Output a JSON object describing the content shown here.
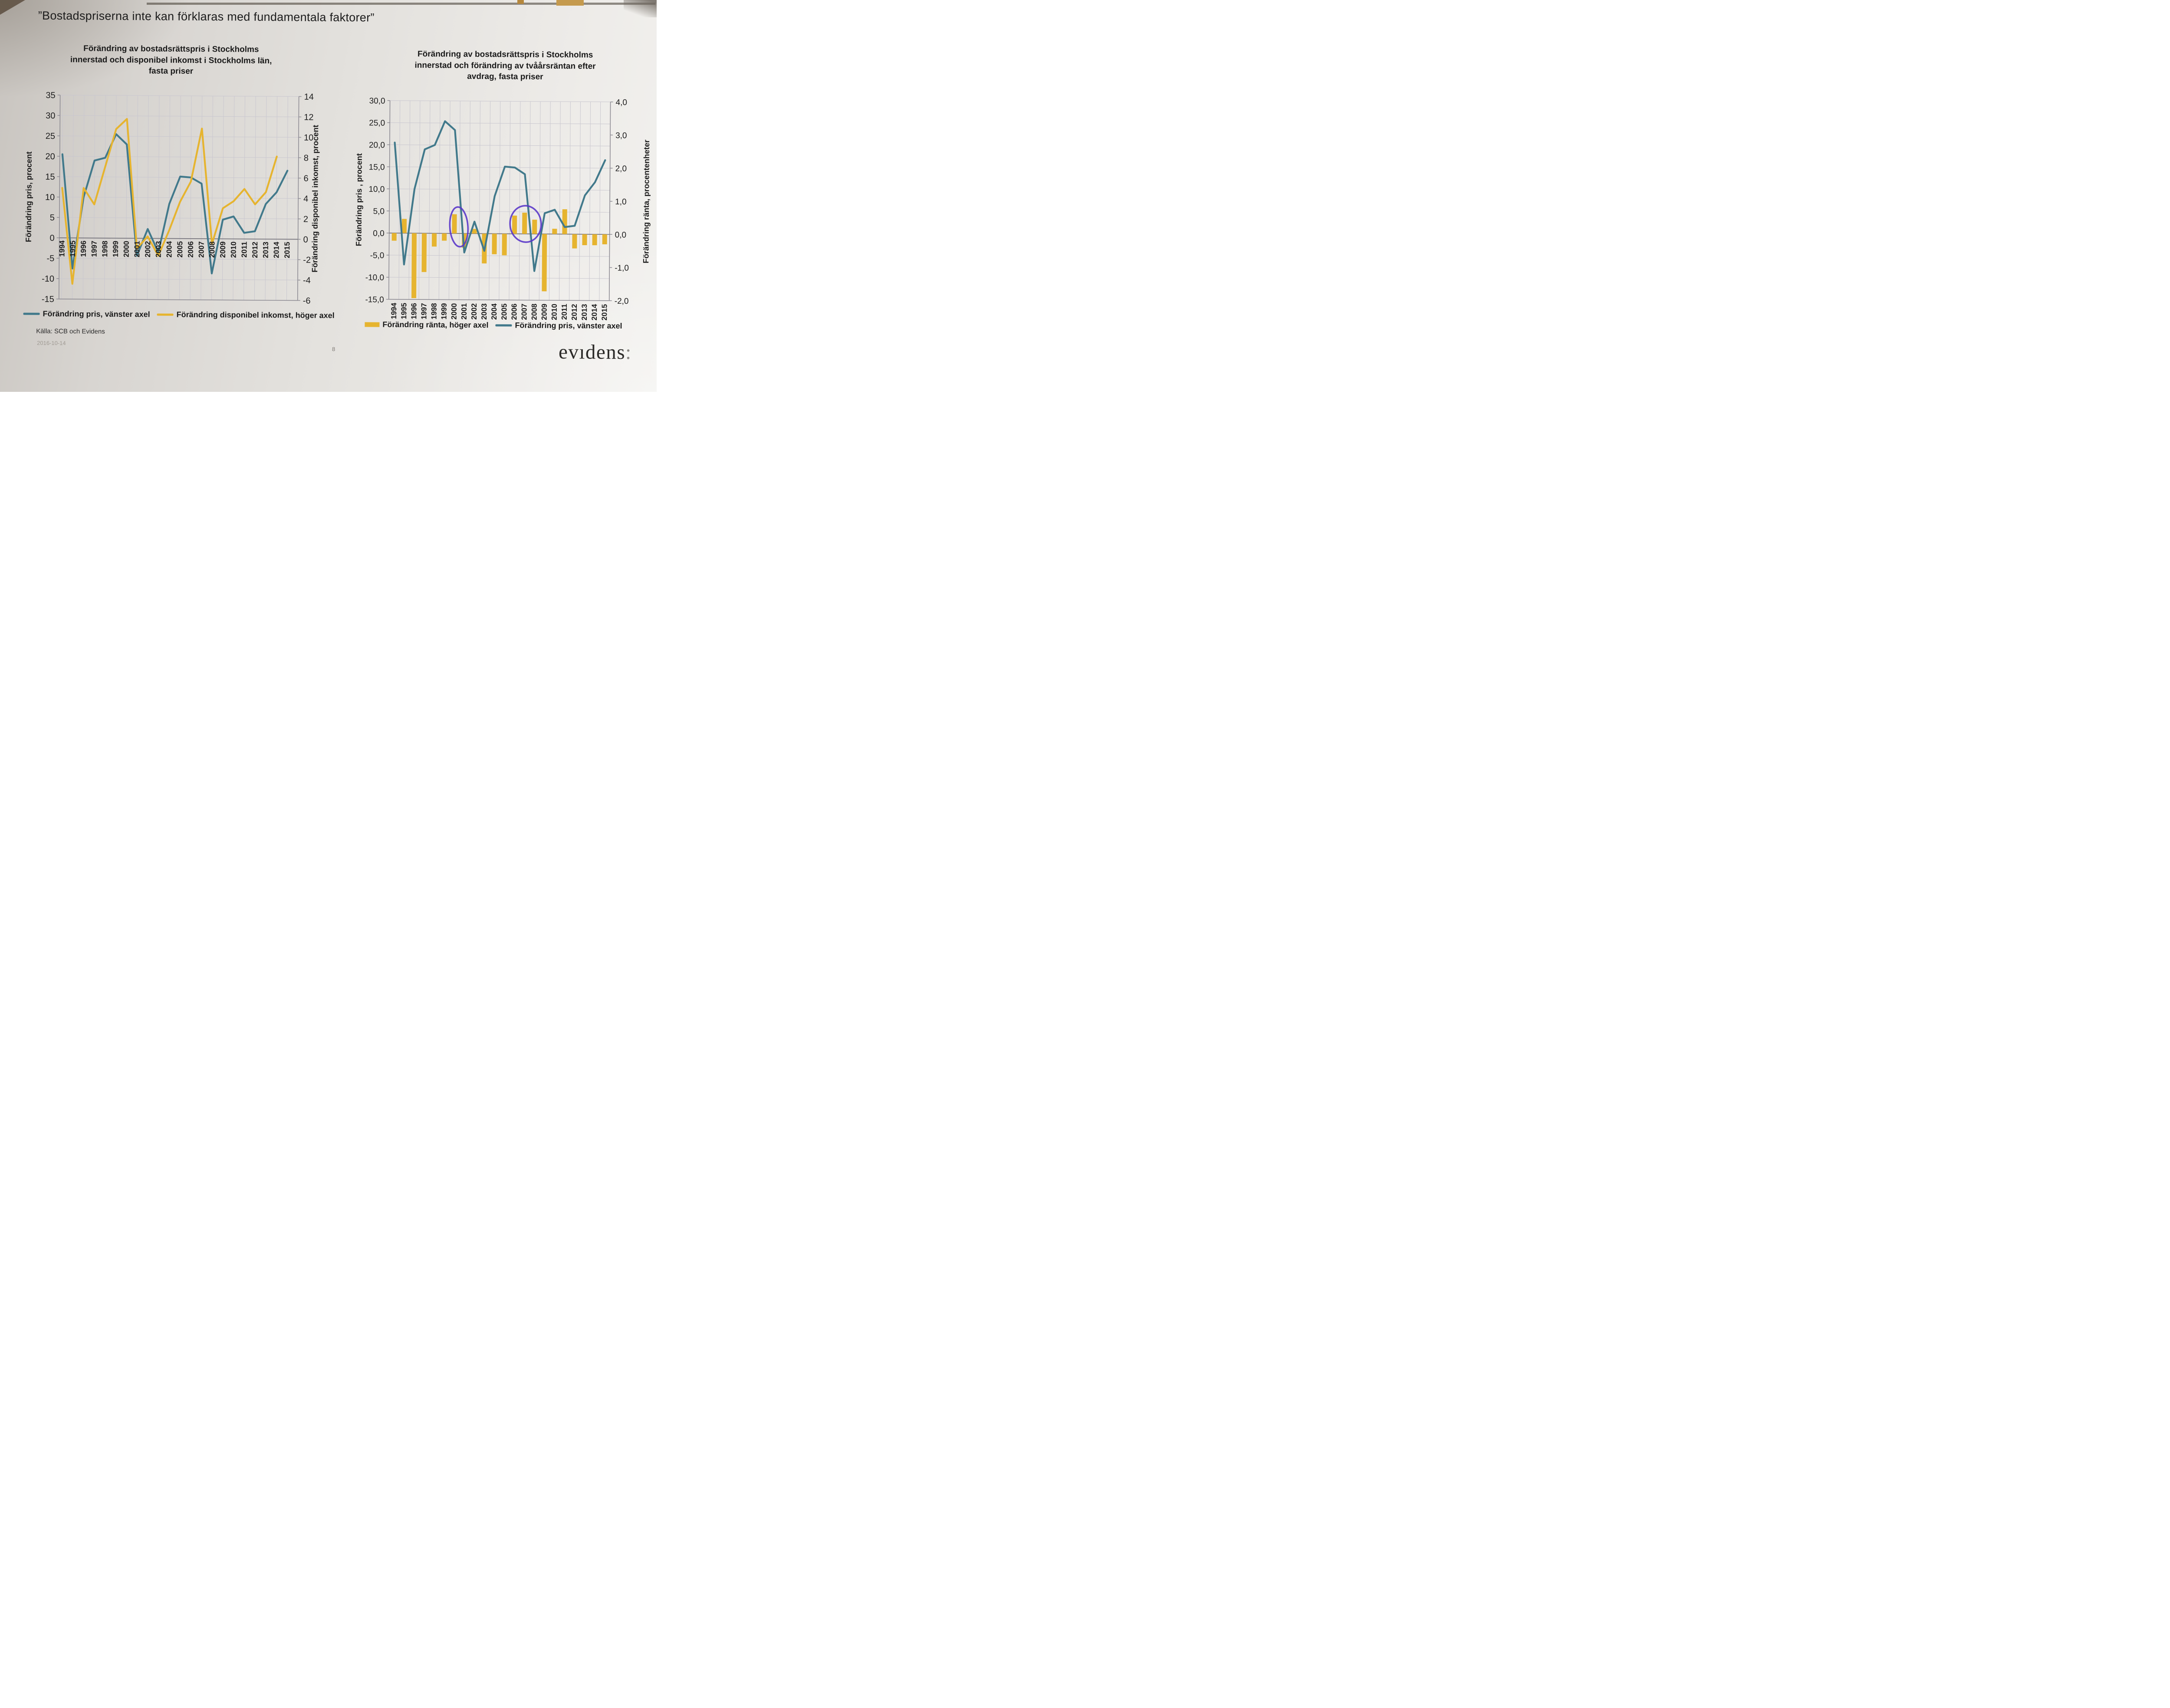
{
  "page": {
    "title": "”Bostadspriserna inte kan förklaras med fundamentala faktorer”",
    "source": "Källa: SCB och Evidens",
    "date": "2016-10-14",
    "page_number": "8",
    "logo_text": "evıdens",
    "logo_colon": ":"
  },
  "colors": {
    "teal": "#41798b",
    "yellow": "#e6b42f",
    "grid": "#c9c7cf",
    "axis": "#8d8b93",
    "zero": "#77757d",
    "purple": "#5633c8",
    "text": "#1c1c1c"
  },
  "chart_data": [
    {
      "type": "line",
      "title": "Förändring av bostadsrättspris i Stockholms\ninnerstad och disponibel inkomst i Stockholms län,\nfasta priser",
      "categories": [
        1994,
        1995,
        1996,
        1997,
        1998,
        1999,
        2000,
        2001,
        2002,
        2003,
        2004,
        2005,
        2006,
        2007,
        2008,
        2009,
        2010,
        2011,
        2012,
        2013,
        2014,
        2015
      ],
      "left_axis": {
        "label": "Förändring pris, procent",
        "min": -15,
        "max": 35,
        "step": 5,
        "ticks": [
          "35",
          "30",
          "25",
          "20",
          "15",
          "10",
          "5",
          "0",
          "-5",
          "-10",
          "-15"
        ]
      },
      "right_axis": {
        "label": "Förändring disponibel inkomst, procent",
        "min": -6,
        "max": 14,
        "step": 2,
        "ticks": [
          "14",
          "12",
          "10",
          "8",
          "6",
          "4",
          "2",
          "0",
          "-2",
          "-4",
          "-6"
        ]
      },
      "grid": true,
      "legend_position": "bottom",
      "series": [
        {
          "name": "Förändring pris, vänster axel",
          "axis": "left",
          "kind": "line",
          "color_key": "teal",
          "values": [
            20.5,
            -7.5,
            10,
            19,
            19.7,
            25.5,
            23,
            -4.3,
            2.3,
            -3.4,
            8.5,
            15.2,
            15,
            13.5,
            -8.5,
            4.7,
            5.5,
            1.5,
            1.9,
            8.6,
            11.5,
            16.8
          ]
        },
        {
          "name": "Förändring disponibel inkomst, höger axel",
          "axis": "right",
          "kind": "line",
          "color_key": "yellow",
          "values": [
            4.9,
            -4.5,
            4.9,
            3.3,
            7.0,
            10.7,
            11.7,
            -1.0,
            0.2,
            -1.7,
            0.8,
            3.6,
            5.6,
            10.8,
            -0.5,
            3.0,
            3.7,
            4.9,
            3.4,
            4.6,
            8.1,
            null
          ]
        }
      ]
    },
    {
      "type": "combo",
      "title": "Förändring av bostadsrättspris i Stockholms\ninnerstad och förändring av tvåårsräntan efter\navdrag, fasta priser",
      "categories": [
        1994,
        1995,
        1996,
        1997,
        1998,
        1999,
        2000,
        2001,
        2002,
        2003,
        2004,
        2005,
        2006,
        2007,
        2008,
        2009,
        2010,
        2011,
        2012,
        2013,
        2014,
        2015
      ],
      "left_axis": {
        "label": "Förändring pris , procent",
        "min": -15,
        "max": 30,
        "step": 5,
        "ticks": [
          "30,0",
          "25,0",
          "20,0",
          "15,0",
          "10,0",
          "5,0",
          "0,0",
          "-5,0",
          "-10,0",
          "-15,0"
        ]
      },
      "right_axis": {
        "label": "Förändring ränta, procentenheter",
        "min": -2,
        "max": 4,
        "step": 1,
        "ticks": [
          "4,0",
          "3,0",
          "2,0",
          "1,0",
          "0,0",
          "-1,0",
          "-2,0"
        ]
      },
      "grid": true,
      "legend_position": "bottom",
      "series": [
        {
          "name": "Förändring ränta, höger axel",
          "axis": "right",
          "kind": "bar",
          "color_key": "yellow",
          "values": [
            -0.23,
            0.43,
            -1.96,
            -1.17,
            -0.4,
            -0.22,
            0.58,
            -0.43,
            0.14,
            -0.9,
            -0.62,
            -0.65,
            0.55,
            0.64,
            0.43,
            -1.73,
            0.16,
            0.75,
            -0.43,
            -0.33,
            -0.33,
            -0.3
          ]
        },
        {
          "name": "Förändring pris, vänster axel",
          "axis": "left",
          "kind": "line",
          "color_key": "teal",
          "values": [
            20.5,
            -7.1,
            10,
            19,
            20,
            25.4,
            23.4,
            -4.3,
            2.7,
            -3.9,
            8.5,
            15.2,
            15,
            13.5,
            -8.4,
            4.7,
            5.5,
            1.6,
            1.9,
            8.8,
            11.8,
            16.8
          ]
        }
      ],
      "annotations": [
        {
          "shape": "ellipse",
          "note": "hand-drawn circle around 2000 rate bar",
          "year_from": 1999.55,
          "year_to": 2001.35,
          "right_from": -0.4,
          "right_to": 0.8
        },
        {
          "shape": "ellipse",
          "note": "hand-drawn circle around 2006-2008 rate bars",
          "year_from": 2005.55,
          "year_to": 2008.65,
          "right_from": -0.25,
          "right_to": 0.85
        }
      ]
    }
  ]
}
